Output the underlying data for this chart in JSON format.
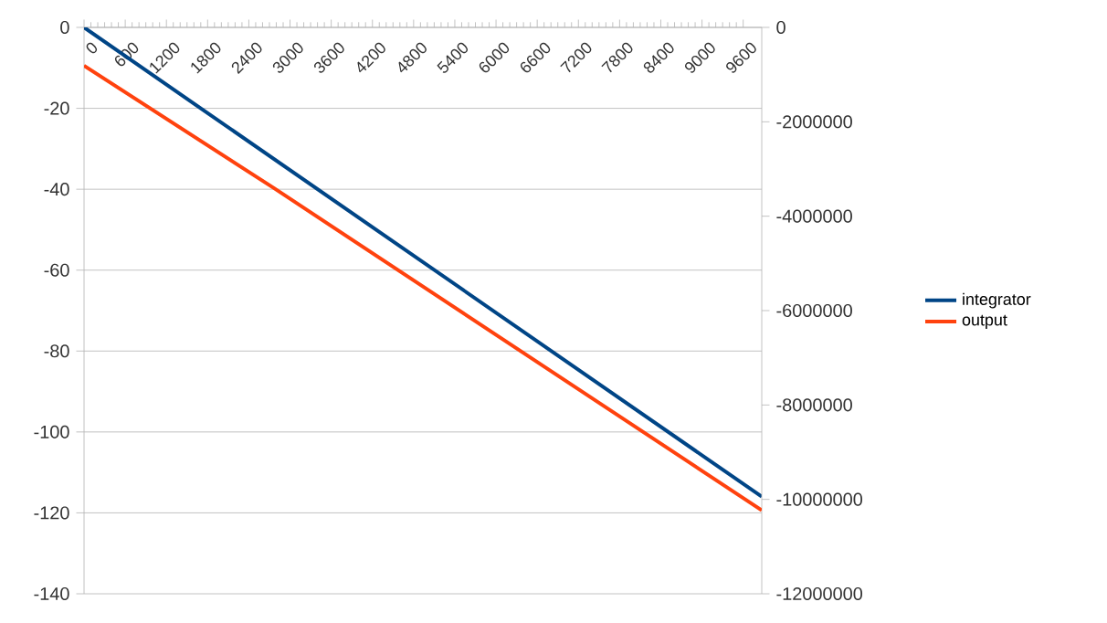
{
  "chart_data": {
    "type": "line",
    "xlim": [
      0,
      9870
    ],
    "xticks": [
      0,
      600,
      1200,
      1800,
      2400,
      3000,
      3600,
      4200,
      4800,
      5400,
      6000,
      6600,
      7200,
      7800,
      8400,
      9000,
      9600
    ],
    "ylim": [
      -140,
      0
    ],
    "yticks": [
      -140,
      -120,
      -100,
      -80,
      -60,
      -40,
      -20,
      0
    ],
    "y2lim": [
      -12000000,
      0
    ],
    "y2ticks": [
      -12000000,
      -10000000,
      -8000000,
      -6000000,
      -4000000,
      -2000000,
      0
    ],
    "grid": "y",
    "legend": "right",
    "series": [
      {
        "name": "integrator",
        "color": "#004586",
        "x": [
          0,
          1700,
          9870
        ],
        "values": [
          0,
          -20,
          -116
        ]
      },
      {
        "name": "output",
        "color": "#ff420e",
        "axis": "y2",
        "x": [
          0,
          2770,
          9870
        ],
        "values": [
          -810000,
          -3410000,
          -10230000
        ]
      }
    ]
  }
}
